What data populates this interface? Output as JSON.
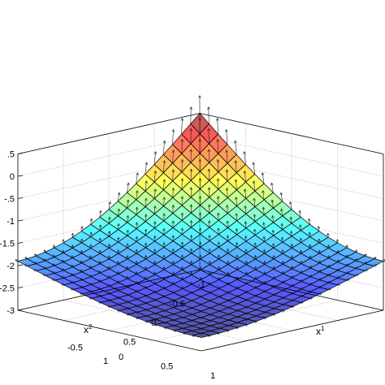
{
  "chart_data": {
    "type": "surface",
    "title": "",
    "xlabel": "x",
    "xlabel_sup": "1",
    "ylabel": "x",
    "ylabel_sup": "2",
    "zlabel": "",
    "xlim": [
      -1,
      1
    ],
    "ylim": [
      -1,
      1
    ],
    "zlim": [
      -3,
      0.5
    ],
    "x_ticks": [
      "-0.5",
      "0",
      "0.5",
      "1"
    ],
    "y_ticks": [
      "-1",
      "-0.5",
      "0",
      "0.5",
      "1"
    ],
    "z_ticks": [
      ".5",
      "0",
      "-.5",
      "-1",
      "-1.5",
      "-2",
      "-2.5",
      "-3"
    ],
    "grid": true,
    "colormap": "jet",
    "face_alpha": 0.5,
    "overlay": "quiver (gradient arrows on surface)",
    "grid_points_per_axis": 21,
    "surface_corners": [
      {
        "x1": -1,
        "x2": -1,
        "z": 0.5
      },
      {
        "x1": 1,
        "x2": -1,
        "z": -1.9
      },
      {
        "x1": -1,
        "x2": 1,
        "z": -1.9
      },
      {
        "x1": 1,
        "x2": 1,
        "z": -2.7
      }
    ]
  }
}
